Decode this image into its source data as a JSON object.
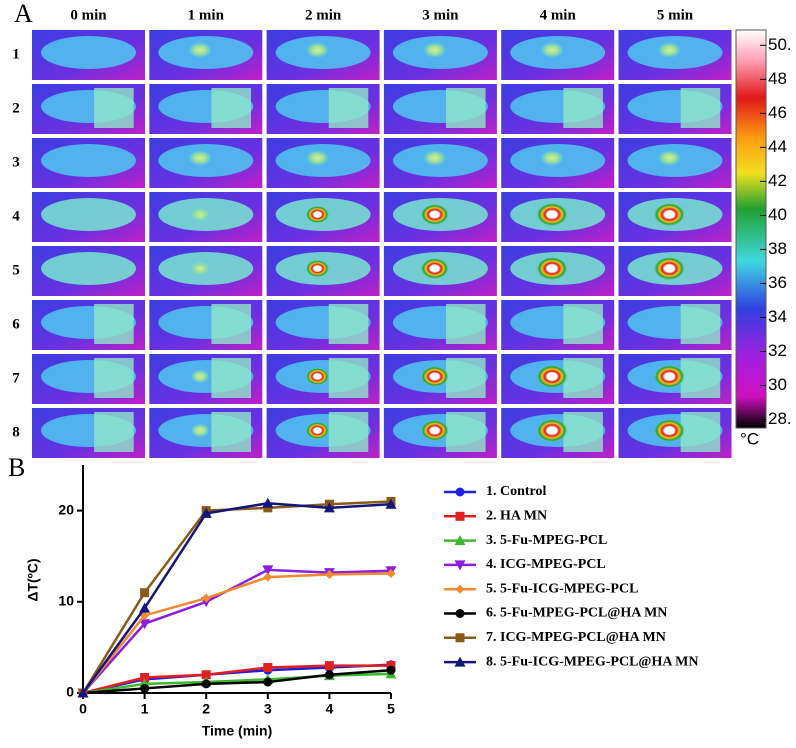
{
  "panel_a": {
    "label": "A",
    "columns": [
      "0 min",
      "1 min",
      "2 min",
      "3 min",
      "4 min",
      "5 min"
    ],
    "rows": [
      "1",
      "2",
      "3",
      "4",
      "5",
      "6",
      "7",
      "8"
    ],
    "colorbar": {
      "lim": [
        27.5,
        50.9
      ],
      "ticks": [
        {
          "value": 50,
          "label": "50."
        },
        48,
        46,
        44,
        42,
        40,
        38,
        36,
        34,
        32,
        30,
        {
          "value": 28,
          "label": "28."
        }
      ],
      "unit": "°C"
    }
  },
  "chart_data": {
    "type": "line",
    "panel_label": "B",
    "x_label": "Time (min)",
    "y_label": "ΔT(ºC)",
    "x": [
      0,
      1,
      2,
      3,
      4,
      5
    ],
    "xlim": [
      0,
      5
    ],
    "xticks": [
      0,
      1,
      2,
      3,
      4,
      5
    ],
    "ylim": [
      0,
      25
    ],
    "yticks": [
      0,
      10,
      20
    ],
    "series": [
      {
        "name": "1. Control",
        "color": "#1f1fe0",
        "marker": "circle",
        "values": [
          0,
          1.5,
          2.0,
          2.5,
          2.8,
          3.1
        ]
      },
      {
        "name": "2. HA MN",
        "color": "#e02020",
        "marker": "square",
        "values": [
          0,
          1.7,
          2.0,
          2.8,
          3.0,
          3.0
        ]
      },
      {
        "name": "3. 5-Fu-MPEG-PCL",
        "color": "#3cb82c",
        "marker": "triangle",
        "values": [
          0,
          1.0,
          1.2,
          1.5,
          1.9,
          2.1
        ]
      },
      {
        "name": "4. ICG-MPEG-PCL",
        "color": "#8a1fe0",
        "marker": "triangle-down",
        "values": [
          0,
          7.6,
          10.0,
          13.5,
          13.2,
          13.4
        ]
      },
      {
        "name": "5. 5-Fu-ICG-MPEG-PCL",
        "color": "#f08a30",
        "marker": "diamond",
        "values": [
          0,
          8.5,
          10.4,
          12.7,
          13.0,
          13.1
        ]
      },
      {
        "name": "6. 5-Fu-MPEG-PCL@HA MN",
        "color": "#000000",
        "marker": "circle",
        "values": [
          0,
          0.5,
          1.0,
          1.2,
          2.0,
          2.5
        ]
      },
      {
        "name": "7. ICG-MPEG-PCL@HA MN",
        "color": "#8a5a1a",
        "marker": "square",
        "values": [
          0,
          11.0,
          20.0,
          20.3,
          20.7,
          21.0
        ]
      },
      {
        "name": "8. 5-Fu-ICG-MPEG-PCL@HA MN",
        "color": "#14147a",
        "marker": "triangle",
        "values": [
          0,
          9.3,
          19.7,
          20.8,
          20.3,
          20.7
        ]
      }
    ]
  }
}
